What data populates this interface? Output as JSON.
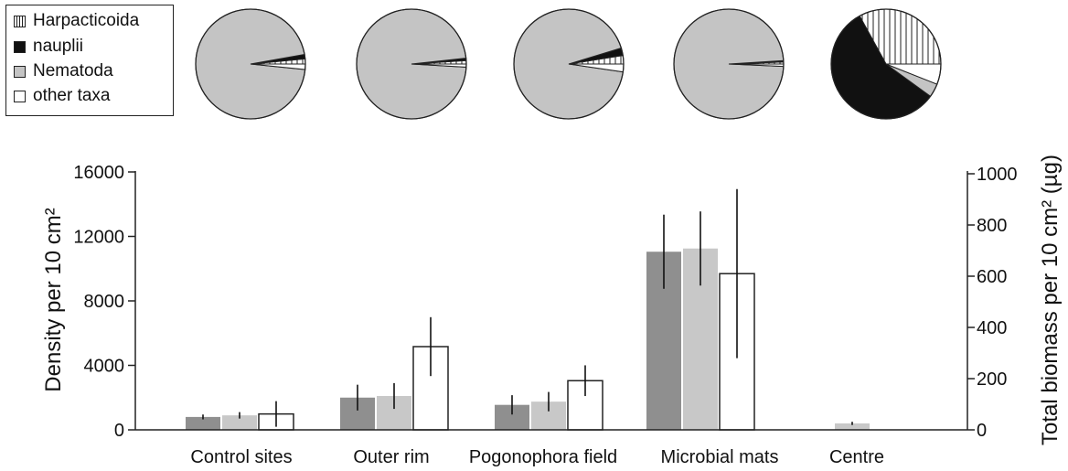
{
  "chart_data": {
    "type": "bar",
    "categories": [
      "Control sites",
      "Outer rim",
      "Pogonophora field",
      "Microbial mats",
      "Centre"
    ],
    "ylabel": "Density per 10 cm²",
    "ylabel_right": "Total biomass per 10 cm² (µg)",
    "ylim": [
      0,
      16000
    ],
    "ylim_right": [
      0,
      1000
    ],
    "yticks": [
      "0",
      "4000",
      "8000",
      "12000",
      "16000"
    ],
    "yticks_right": [
      "0",
      "200",
      "400",
      "600",
      "800",
      "1000"
    ],
    "grid": false,
    "series": [
      {
        "color": "#8f8f8f",
        "axis": "left",
        "values": [
          800,
          2000,
          1550,
          11050,
          0
        ],
        "errors": [
          150,
          800,
          600,
          2300,
          0
        ]
      },
      {
        "color": "#c8c8c8",
        "axis": "left",
        "values": [
          900,
          2100,
          1750,
          11250,
          400
        ],
        "errors": [
          200,
          800,
          600,
          2300,
          100
        ]
      },
      {
        "color": "#ffffff",
        "axis": "right",
        "values": [
          62,
          325,
          192,
          610,
          0
        ],
        "errors": [
          50,
          115,
          60,
          330,
          0
        ]
      }
    ],
    "pies": [
      {
        "category": "Control sites",
        "slices": {
          "Harpacticoida": 1.5,
          "nauplii": 1.3,
          "Nematoda": 95.6,
          "other taxa": 1.6
        }
      },
      {
        "category": "Outer rim",
        "slices": {
          "Harpacticoida": 1.0,
          "nauplii": 0.7,
          "Nematoda": 97.4,
          "other taxa": 0.9
        }
      },
      {
        "category": "Pogonophora field",
        "slices": {
          "Harpacticoida": 2.5,
          "nauplii": 2.2,
          "Nematoda": 93.0,
          "other taxa": 2.3
        }
      },
      {
        "category": "Microbial mats",
        "slices": {
          "Harpacticoida": 0.6,
          "nauplii": 0.4,
          "Nematoda": 98.3,
          "other taxa": 0.7
        }
      },
      {
        "category": "Centre",
        "slices": {
          "Harpacticoida": 33.0,
          "nauplii": 57.0,
          "Nematoda": 4.0,
          "other taxa": 6.0
        }
      }
    ],
    "pie_colors": {
      "Harpacticoida": "hatch",
      "nauplii": "#111111",
      "Nematoda": "#c4c4c4",
      "other taxa": "#ffffff"
    }
  },
  "legend": {
    "harpacticoida": "Harpacticoida",
    "nauplii": "nauplii",
    "nematoda": "Nematoda",
    "other": "other taxa"
  }
}
